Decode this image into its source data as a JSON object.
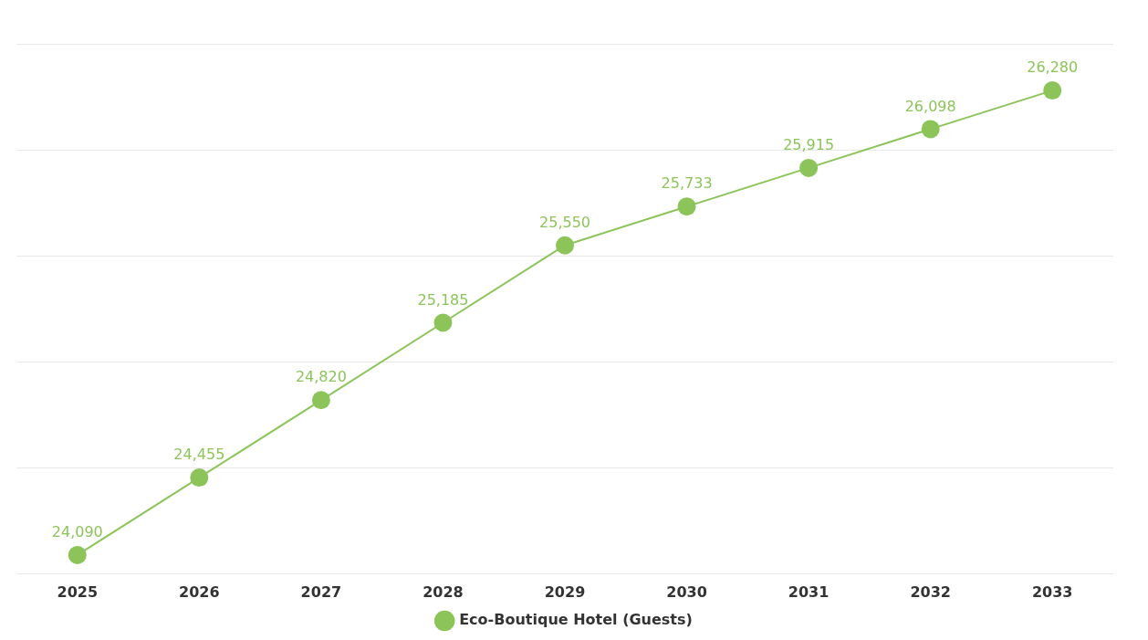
{
  "chart_data": {
    "type": "line",
    "categories": [
      "2025",
      "2026",
      "2027",
      "2028",
      "2029",
      "2030",
      "2031",
      "2032",
      "2033"
    ],
    "series": [
      {
        "name": "Eco-Boutique Hotel (Guests)",
        "color": "#8cc45a",
        "values": [
          24090,
          24455,
          24820,
          25185,
          25550,
          25733,
          25915,
          26098,
          26280
        ],
        "value_labels": [
          "24,090",
          "24,455",
          "24,820",
          "25,185",
          "25,550",
          "25,733",
          "25,915",
          "26,098",
          "26,280"
        ]
      }
    ],
    "grid": "y",
    "tick_labels": "x",
    "legend": "bottom",
    "marker": "circle",
    "line_style": "solid"
  }
}
